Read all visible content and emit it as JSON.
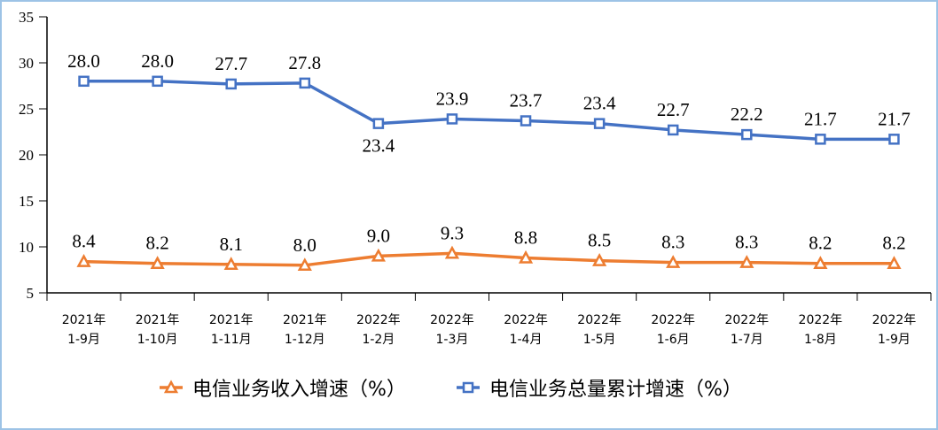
{
  "chart_data": {
    "type": "line",
    "categories": [
      [
        "2021年",
        "1-9月"
      ],
      [
        "2021年",
        "1-10月"
      ],
      [
        "2021年",
        "1-11月"
      ],
      [
        "2021年",
        "1-12月"
      ],
      [
        "2022年",
        "1-2月"
      ],
      [
        "2022年",
        "1-3月"
      ],
      [
        "2022年",
        "1-4月"
      ],
      [
        "2022年",
        "1-5月"
      ],
      [
        "2022年",
        "1-6月"
      ],
      [
        "2022年",
        "1-7月"
      ],
      [
        "2022年",
        "1-8月"
      ],
      [
        "2022年",
        "1-9月"
      ]
    ],
    "series": [
      {
        "name": "电信业务收入增速（%）",
        "color": "#ED7D31",
        "marker": "triangle",
        "values": [
          8.4,
          8.2,
          8.1,
          8.0,
          9.0,
          9.3,
          8.8,
          8.5,
          8.3,
          8.3,
          8.2,
          8.2
        ]
      },
      {
        "name": "电信业务总量累计增速（%）",
        "color": "#4472C4",
        "marker": "square",
        "values": [
          28.0,
          28.0,
          27.7,
          27.8,
          23.4,
          23.9,
          23.7,
          23.4,
          22.7,
          22.2,
          21.7,
          21.7
        ]
      }
    ],
    "ylim": [
      5,
      35
    ],
    "yticks": [
      5,
      10,
      15,
      20,
      25,
      30,
      35
    ],
    "grid": false,
    "legend": "bottom",
    "data_labels": true
  }
}
